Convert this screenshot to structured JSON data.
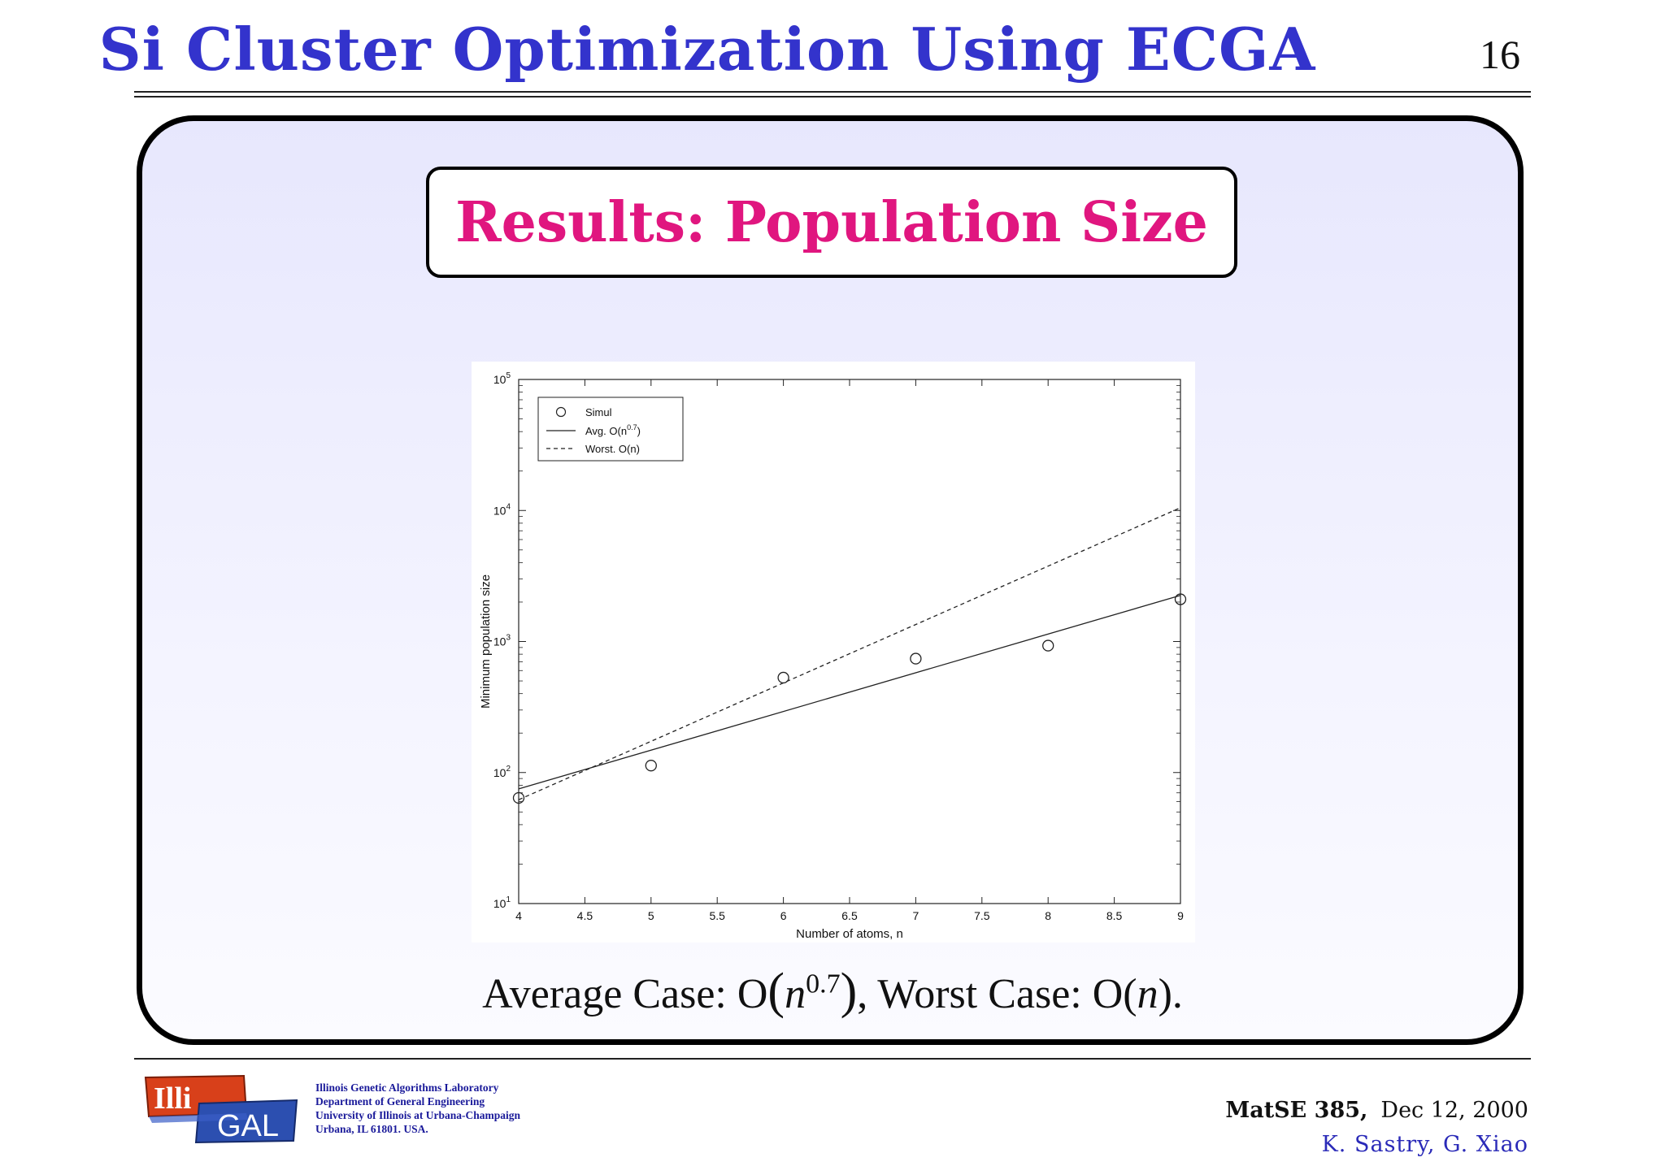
{
  "header": {
    "title": "Si Cluster Optimization Using ECGA",
    "page_number": "16"
  },
  "panel": {
    "subtitle": "Results: Population Size"
  },
  "chart_data": {
    "type": "scatter",
    "xlabel": "Number of atoms, n",
    "ylabel": "Minimum population size",
    "xlim": [
      4,
      9
    ],
    "ylim": [
      10,
      100000
    ],
    "yscale": "log",
    "xticks": [
      "4",
      "4.5",
      "5",
      "5.5",
      "6",
      "6.5",
      "7",
      "7.5",
      "8",
      "8.5",
      "9"
    ],
    "yticks": [
      {
        "base": "10",
        "exp": "1",
        "value": 10
      },
      {
        "base": "10",
        "exp": "2",
        "value": 100
      },
      {
        "base": "10",
        "exp": "3",
        "value": 1000
      },
      {
        "base": "10",
        "exp": "4",
        "value": 10000
      },
      {
        "base": "10",
        "exp": "5",
        "value": 100000
      }
    ],
    "grid": false,
    "legend_position": "top-left",
    "series": [
      {
        "name": "Simul",
        "style": "markers",
        "x": [
          4,
          5,
          6,
          7,
          8,
          9
        ],
        "y": [
          64,
          113,
          530,
          740,
          930,
          2100
        ]
      },
      {
        "name": "Avg. O(n^{0.7})",
        "legend_base": "Avg. O(n",
        "legend_sup": "0.7",
        "legend_tail": ")",
        "style": "solid",
        "x": [
          4,
          9
        ],
        "y": [
          75,
          2250
        ]
      },
      {
        "name": "Worst. O(n)",
        "legend_base": "Worst. O(n)",
        "style": "dashed",
        "x": [
          4,
          9
        ],
        "y": [
          62,
          10500
        ]
      }
    ]
  },
  "caption": {
    "prefix": "Average Case: O",
    "avg_base": "n",
    "avg_exp": "0.7",
    "middle": ", Worst Case: O(",
    "worst_var": "n",
    "suffix": ")."
  },
  "footer": {
    "logo_text_top": "Illi",
    "logo_text_bottom": "GAL",
    "lab_lines": [
      "Illinois Genetic Algorithms Laboratory",
      "Department of General Engineering",
      "University of Illinois at Urbana-Champaign",
      "Urbana, IL 61801. USA."
    ],
    "course": "MatSE 385,",
    "date": "Dec 12, 2000",
    "authors": "K. Sastry, G. Xiao"
  },
  "colors": {
    "title_blue": "#3333cc",
    "subtitle_magenta": "#e0167f",
    "panel_tint": "#e7e7fd",
    "logo_red": "#d8401a",
    "logo_blue": "#2c4fb0"
  }
}
